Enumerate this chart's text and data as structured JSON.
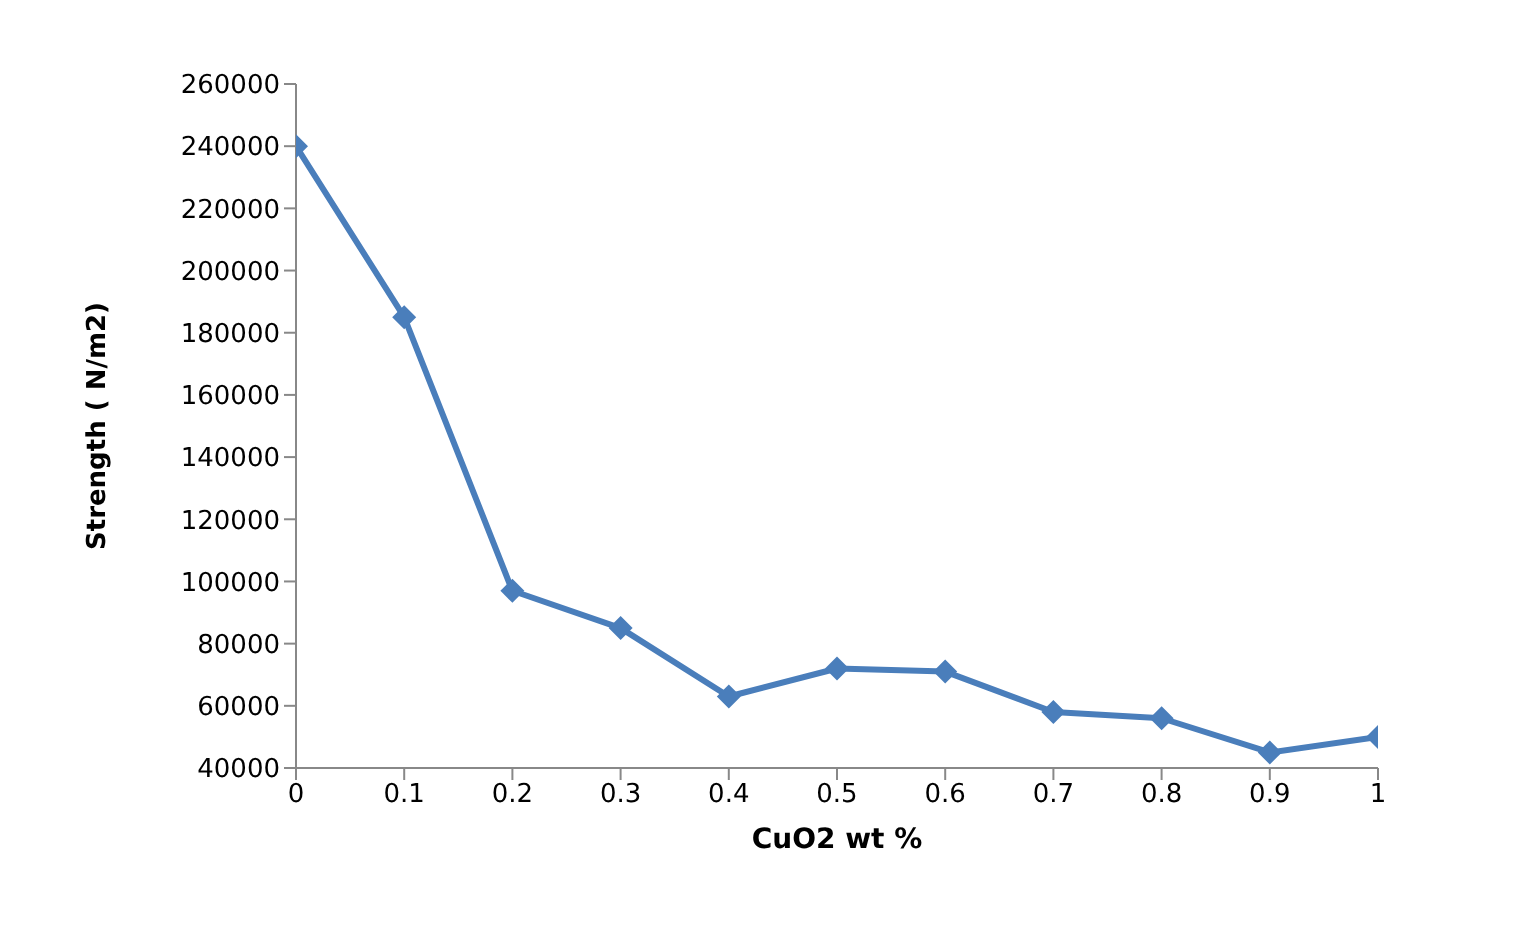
{
  "chart_data": {
    "type": "line",
    "xlabel": "CuO2 wt %",
    "ylabel": "Strength ( N/m2)",
    "x": [
      0,
      0.1,
      0.2,
      0.3,
      0.4,
      0.5,
      0.6,
      0.7,
      0.8,
      0.9,
      1
    ],
    "series": [
      {
        "color": "#4a7ebb",
        "values": [
          240000,
          185000,
          97000,
          85000,
          63000,
          72000,
          71000,
          58000,
          56000,
          45000,
          50000
        ]
      }
    ],
    "xlim": [
      0,
      1
    ],
    "xticks": [
      0,
      0.1,
      0.2,
      0.3,
      0.4,
      0.5,
      0.6,
      0.7,
      0.8,
      0.9,
      1
    ],
    "ylim": [
      40000,
      260000
    ],
    "yticks": [
      40000,
      60000,
      80000,
      100000,
      120000,
      140000,
      160000,
      180000,
      200000,
      220000,
      240000,
      260000
    ],
    "grid": false,
    "legend": false,
    "marker": "diamond",
    "line_style": "solid"
  }
}
